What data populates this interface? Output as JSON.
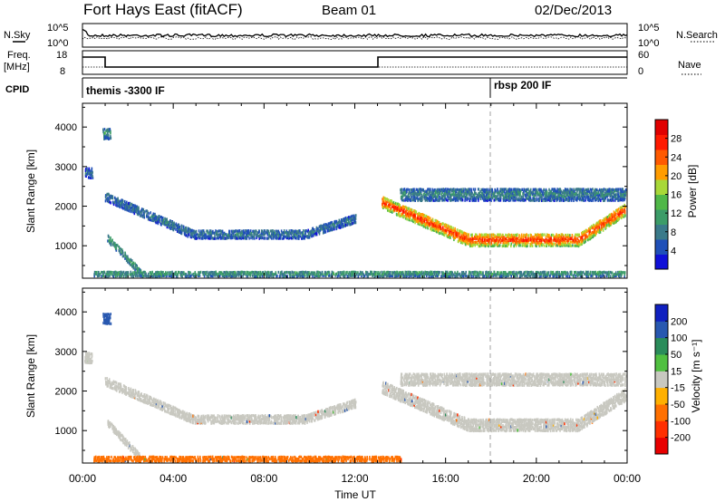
{
  "header": {
    "title": "Fort Hays East (fitACF)",
    "beam": "Beam 01",
    "date": "02/Dec/2013"
  },
  "noise_panel": {
    "left_label": "N.Sky",
    "right_label": "N.Search",
    "ticks": [
      "10^5",
      "10^0"
    ]
  },
  "freq_panel": {
    "left_label_1": "Freq.",
    "left_label_2": "[MHz]",
    "left_ticks": [
      "18",
      "8"
    ],
    "right_label": "Nave",
    "right_ticks": [
      "60",
      "0"
    ]
  },
  "cpid_panel": {
    "label": "CPID",
    "segments": [
      {
        "start_hour": 0,
        "text": "themis -3300 IF"
      },
      {
        "start_hour": 18,
        "text": "rbsp 200 IF"
      }
    ]
  },
  "colors": {
    "power_scale": [
      "#1010d8",
      "#2050b8",
      "#3a7a8a",
      "#3c9c68",
      "#50b848",
      "#a8d838",
      "#ff9c00",
      "#ff5a00",
      "#ff1a00",
      "#e00000"
    ],
    "velocity_scale": [
      "#1020c0",
      "#2858b0",
      "#2a8c5a",
      "#50c040",
      "#c8c8c0",
      "#ffb000",
      "#ff7000",
      "#ff3000",
      "#e80000"
    ]
  },
  "chart_data": [
    {
      "type": "heatmap",
      "name": "power",
      "xlabel": "",
      "ylabel": "Slant Range [km]",
      "colorbar_label": "Power [dB]",
      "xlim": [
        "00:00",
        "24:00"
      ],
      "ylim": [
        180,
        4600
      ],
      "yticks": [
        "1000",
        "2000",
        "3000",
        "4000"
      ],
      "colorbar_ticks": [
        "4",
        "8",
        "12",
        "16",
        "20",
        "24",
        "28"
      ],
      "colorbar_range": [
        0,
        32
      ],
      "features": [
        {
          "label": "early echoes",
          "t_start": 0.1,
          "t_end": 0.4,
          "range_center": 2850,
          "range_width": 260,
          "value": 6
        },
        {
          "label": "patch near 1h",
          "t_start": 0.9,
          "t_end": 1.2,
          "range_center": 3850,
          "range_width": 280,
          "value": 10
        },
        {
          "label": "diagonal 1h-2.5h",
          "t_start": 1.1,
          "t_end": 2.6,
          "range_start": 1200,
          "range_end": 300,
          "range_width": 180,
          "value": 10
        },
        {
          "label": "arc 1h-12h",
          "t_start": 1.0,
          "t_end": 12.0,
          "range_start": 2250,
          "range_mid": 1300,
          "range_end": 1700,
          "range_width": 220,
          "value": 7
        },
        {
          "label": "strong band 13.2h-24h",
          "t_start": 13.2,
          "t_end": 24.0,
          "range_start": 2100,
          "range_mid": 1150,
          "range_end": 1950,
          "range_width": 300,
          "value": 24
        },
        {
          "label": "upper band 14h-24h",
          "t_start": 14.0,
          "t_end": 24.0,
          "range_center": 2300,
          "range_width": 300,
          "value": 8
        },
        {
          "label": "ground scatter base",
          "t_start": 0.5,
          "t_end": 24.0,
          "range_center": 300,
          "range_width": 130,
          "value": 10
        }
      ]
    },
    {
      "type": "heatmap",
      "name": "velocity",
      "xlabel": "Time UT",
      "ylabel": "Slant Range [km]",
      "colorbar_label": "Velocity [m s⁻¹]",
      "xlim": [
        "00:00",
        "24:00"
      ],
      "ylim": [
        180,
        4600
      ],
      "xticks": [
        "00:00",
        "04:00",
        "08:00",
        "12:00",
        "16:00",
        "20:00",
        "00:00"
      ],
      "yticks": [
        "1000",
        "2000",
        "3000",
        "4000"
      ],
      "colorbar_ticks": [
        "200",
        "100",
        "50",
        "15",
        "-15",
        "-50",
        "-100",
        "-200"
      ],
      "features": [
        {
          "label": "early echoes",
          "t_start": 0.1,
          "t_end": 0.4,
          "range_center": 2850,
          "range_width": 260,
          "value": 0
        },
        {
          "label": "patch near 1h",
          "t_start": 0.9,
          "t_end": 1.2,
          "range_center": 3850,
          "range_width": 280,
          "value": 150
        },
        {
          "label": "diagonal 1h-2.5h",
          "t_start": 1.1,
          "t_end": 2.6,
          "range_start": 1200,
          "range_end": 300,
          "range_width": 180,
          "value": 0
        },
        {
          "label": "arc 1h-12h",
          "t_start": 1.0,
          "t_end": 12.0,
          "range_start": 2250,
          "range_mid": 1300,
          "range_end": 1700,
          "range_width": 220,
          "value": 0
        },
        {
          "label": "band 13.2h-24h",
          "t_start": 13.2,
          "t_end": 24.0,
          "range_start": 2100,
          "range_mid": 1150,
          "range_end": 1950,
          "range_width": 300,
          "value": 0
        },
        {
          "label": "upper band 14h-24h",
          "t_start": 14.0,
          "t_end": 24.0,
          "range_center": 2300,
          "range_width": 300,
          "value": 0
        },
        {
          "label": "ground scatter base",
          "t_start": 0.5,
          "t_end": 14.0,
          "range_center": 300,
          "range_width": 130,
          "value": -60
        }
      ]
    }
  ]
}
